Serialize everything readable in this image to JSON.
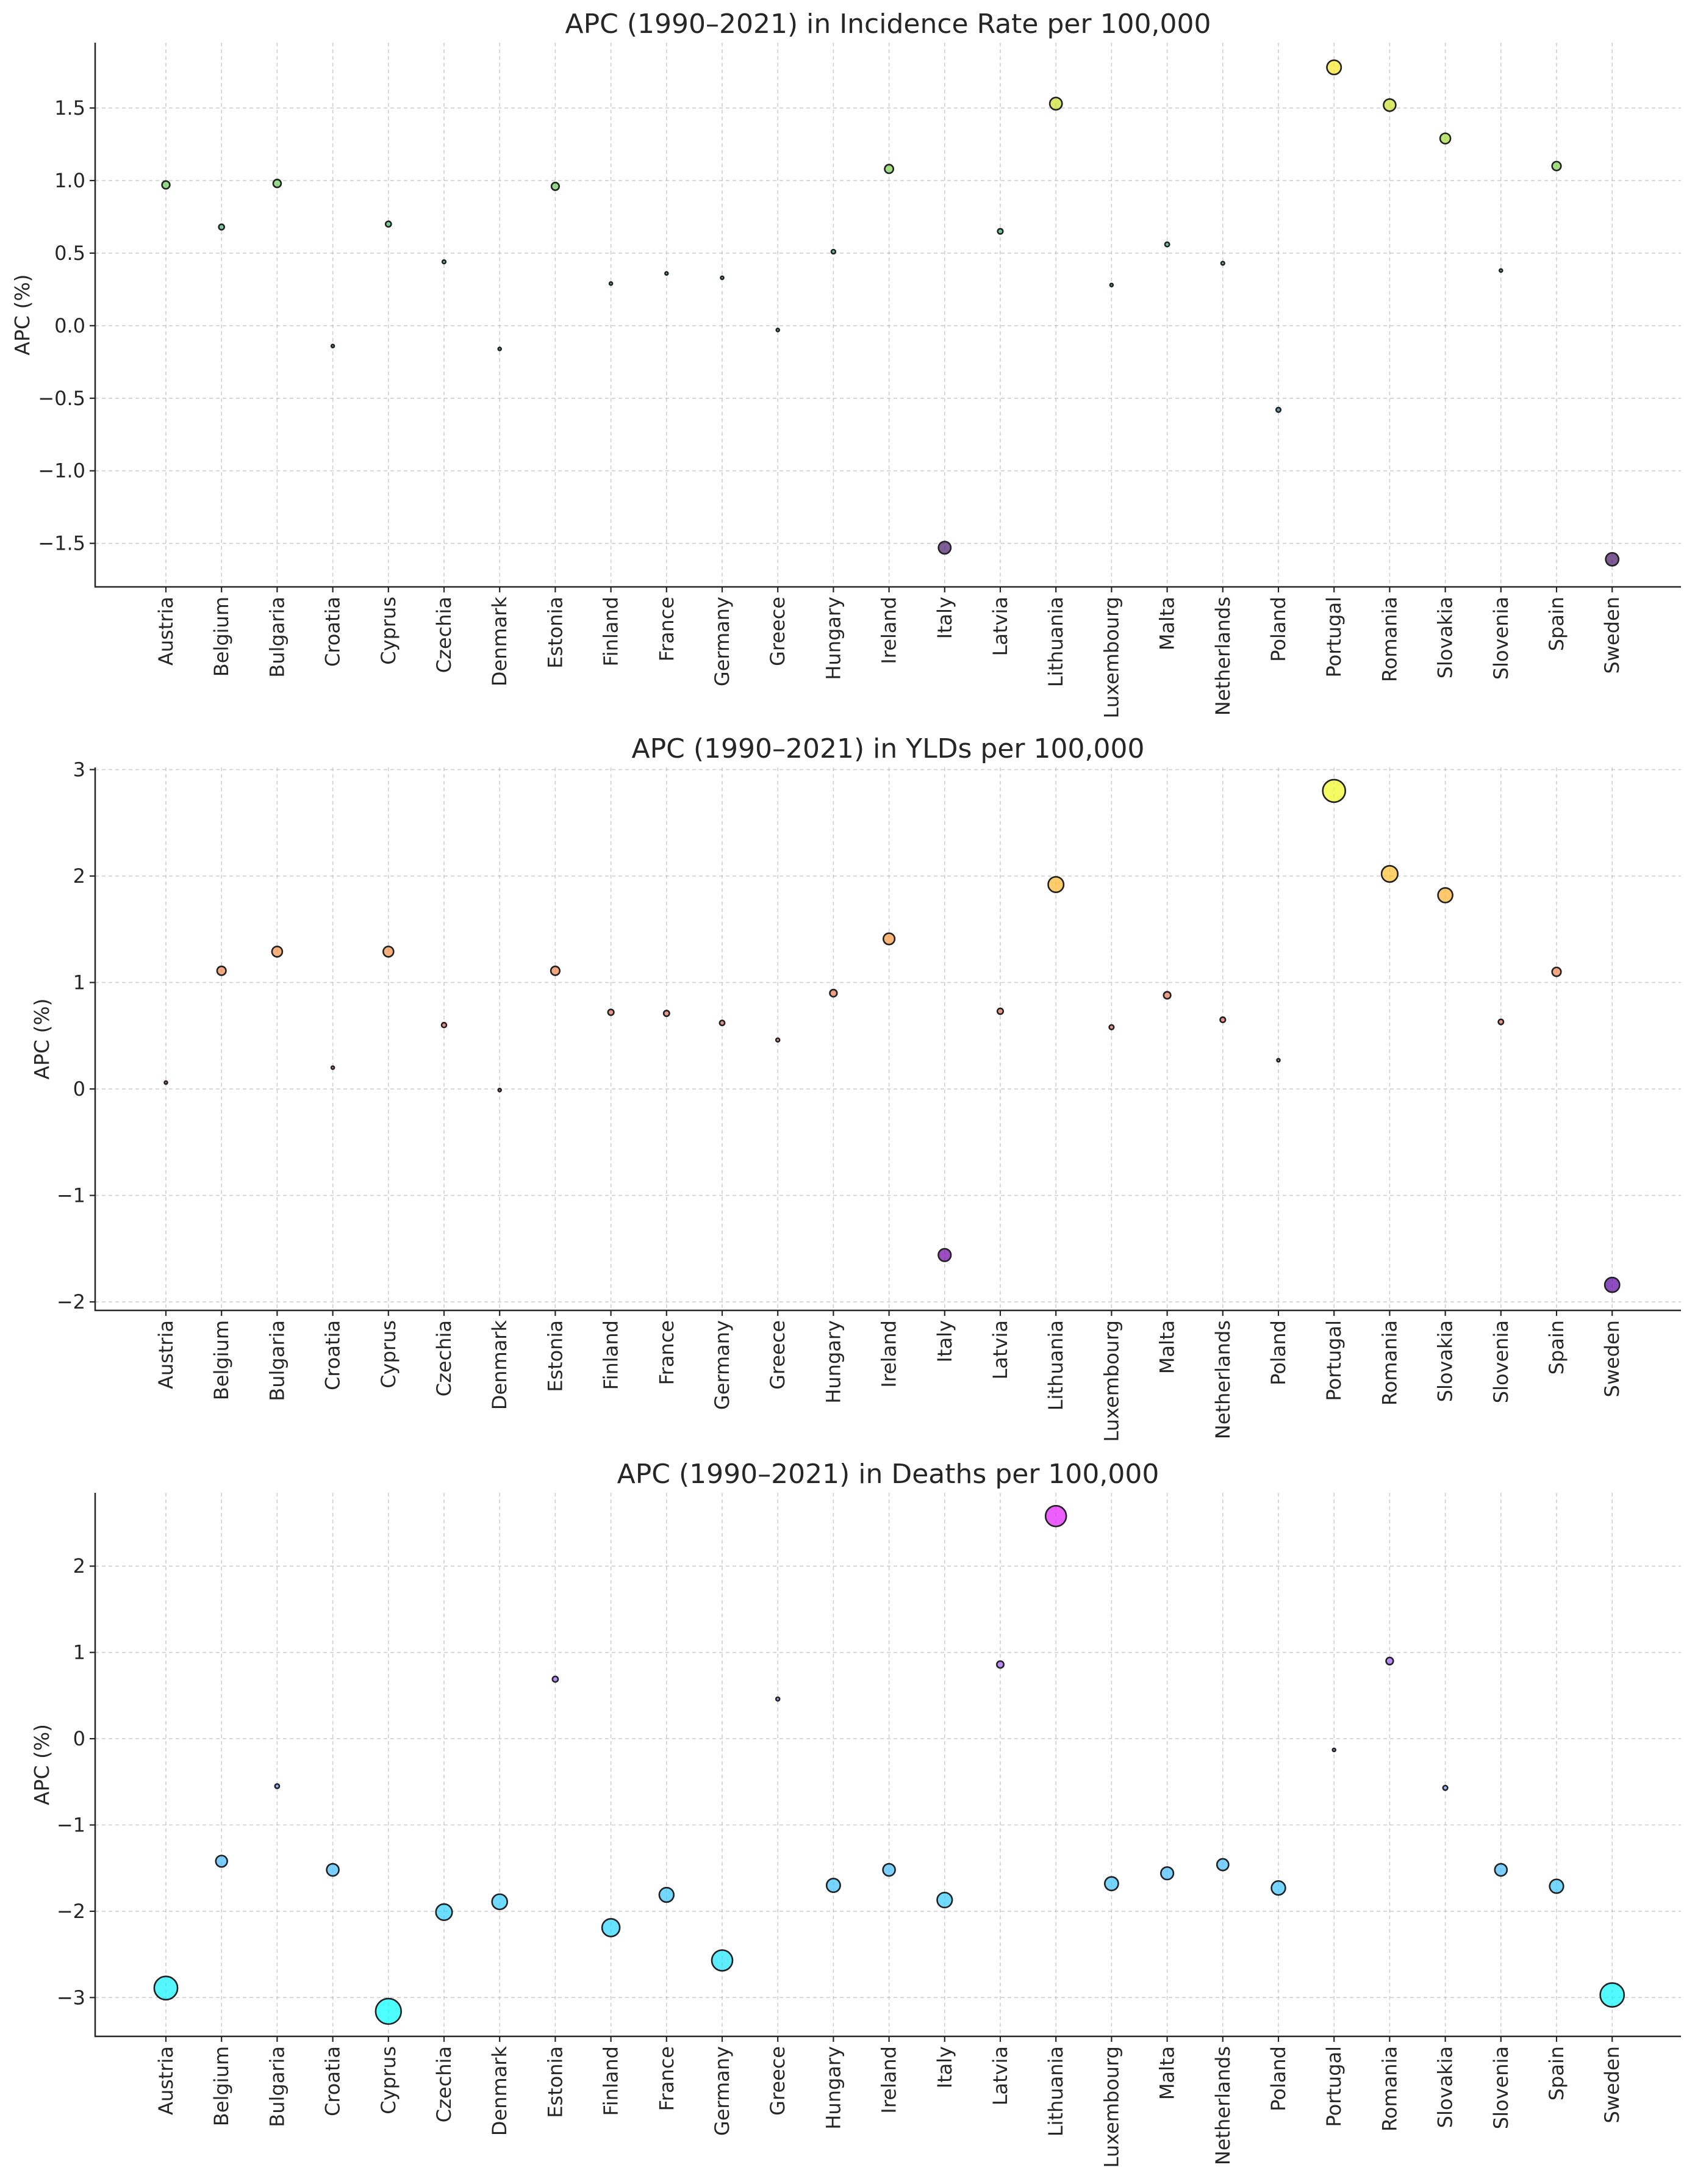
{
  "chart_data": [
    {
      "type": "scatter",
      "title": "APC (1990–2021) in Incidence Rate per 100,000",
      "ylabel": "APC (%)",
      "xlabel": "",
      "ylim": [
        -1.8,
        1.95
      ],
      "yticks": [
        -1.5,
        -1.0,
        -0.5,
        0.0,
        0.5,
        1.0,
        1.5
      ],
      "ytick_labels": [
        "−1.5",
        "−1.0",
        "−0.5",
        "0.0",
        "0.5",
        "1.0",
        "1.5"
      ],
      "grid": true,
      "categories": [
        "Austria",
        "Belgium",
        "Bulgaria",
        "Croatia",
        "Cyprus",
        "Czechia",
        "Denmark",
        "Estonia",
        "Finland",
        "France",
        "Germany",
        "Greece",
        "Hungary",
        "Ireland",
        "Italy",
        "Latvia",
        "Lithuania",
        "Luxembourg",
        "Malta",
        "Netherlands",
        "Poland",
        "Portugal",
        "Romania",
        "Slovakia",
        "Slovenia",
        "Spain",
        "Sweden"
      ],
      "values": [
        0.97,
        0.68,
        0.98,
        -0.14,
        0.7,
        0.44,
        -0.16,
        0.96,
        0.29,
        0.36,
        0.33,
        -0.03,
        0.51,
        1.08,
        -1.53,
        0.65,
        1.53,
        0.28,
        0.56,
        0.43,
        -0.58,
        1.78,
        1.52,
        1.29,
        0.38,
        1.1,
        -1.61
      ],
      "colormap": "viridis",
      "color_range": [
        -1.8,
        1.8
      ],
      "size_encodes": "absolute APC"
    },
    {
      "type": "scatter",
      "title": "APC (1990–2021) in YLDs per 100,000",
      "ylabel": "APC (%)",
      "xlabel": "",
      "ylim": [
        -2.08,
        3.02
      ],
      "yticks": [
        -2,
        -1,
        0,
        1,
        2,
        3
      ],
      "ytick_labels": [
        "−2",
        "−1",
        "0",
        "1",
        "2",
        "3"
      ],
      "grid": true,
      "categories": [
        "Austria",
        "Belgium",
        "Bulgaria",
        "Croatia",
        "Cyprus",
        "Czechia",
        "Denmark",
        "Estonia",
        "Finland",
        "France",
        "Germany",
        "Greece",
        "Hungary",
        "Ireland",
        "Italy",
        "Latvia",
        "Lithuania",
        "Luxembourg",
        "Malta",
        "Netherlands",
        "Poland",
        "Portugal",
        "Romania",
        "Slovakia",
        "Slovenia",
        "Spain",
        "Sweden"
      ],
      "values": [
        0.06,
        1.11,
        1.29,
        0.2,
        1.29,
        0.6,
        -0.01,
        1.11,
        0.72,
        0.71,
        0.62,
        0.46,
        0.9,
        1.41,
        -1.56,
        0.73,
        1.92,
        0.58,
        0.88,
        0.65,
        0.27,
        2.8,
        2.02,
        1.82,
        0.63,
        1.1,
        -1.84
      ],
      "colormap": "plasma",
      "color_range": [
        -2.8,
        2.8
      ],
      "size_encodes": "absolute APC"
    },
    {
      "type": "scatter",
      "title": "APC (1990–2021) in Deaths per 100,000",
      "ylabel": "APC (%)",
      "xlabel": "",
      "ylim": [
        -3.45,
        2.85
      ],
      "yticks": [
        -3,
        -2,
        -1,
        0,
        1,
        2
      ],
      "ytick_labels": [
        "−3",
        "−2",
        "−1",
        "0",
        "1",
        "2"
      ],
      "grid": true,
      "categories": [
        "Austria",
        "Belgium",
        "Bulgaria",
        "Croatia",
        "Cyprus",
        "Czechia",
        "Denmark",
        "Estonia",
        "Finland",
        "France",
        "Germany",
        "Greece",
        "Hungary",
        "Ireland",
        "Italy",
        "Latvia",
        "Lithuania",
        "Luxembourg",
        "Malta",
        "Netherlands",
        "Poland",
        "Portugal",
        "Romania",
        "Slovakia",
        "Slovenia",
        "Spain",
        "Sweden"
      ],
      "values": [
        -2.89,
        -1.42,
        -0.55,
        -1.52,
        -3.16,
        -2.01,
        -1.89,
        0.69,
        -2.19,
        -1.81,
        -2.57,
        0.46,
        -1.7,
        -1.52,
        -1.87,
        0.86,
        2.58,
        -1.68,
        -1.56,
        -1.46,
        -1.73,
        -0.13,
        0.9,
        -0.57,
        -1.52,
        -1.71,
        -2.97
      ],
      "colormap": "cool",
      "color_range": [
        -3.2,
        3.2
      ],
      "size_encodes": "absolute APC"
    }
  ]
}
